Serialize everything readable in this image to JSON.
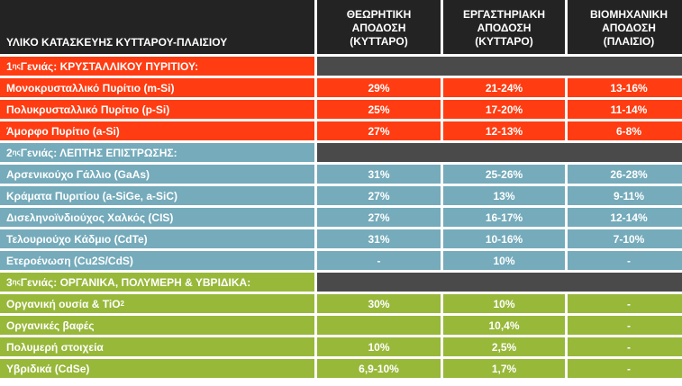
{
  "header": {
    "material": "ΥΛΙΚΟ ΚΑΤΑΣΚΕΥΗΣ ΚΥΤΤΑΡΟΥ-ΠΛΑΙΣΙΟΥ",
    "col1": [
      "ΘΕΩΡΗΤΙΚΗ",
      "ΑΠΟΔΟΣΗ",
      "(ΚΥΤΤΑΡΟ)"
    ],
    "col2": [
      "ΕΡΓΑΣΤΗΡΙΑΚΗ",
      "ΑΠΟΔΟΣΗ",
      "(ΚΥΤΤΑΡΟ)"
    ],
    "col3": [
      "ΒΙΟΜΗΧΑΝΙΚΗ",
      "ΑΠΟΔΟΣΗ",
      "(ΠΛΑΙΣΙΟ)"
    ]
  },
  "gen1": {
    "num": "1",
    "sup": "ης",
    "text": " Γενιάς: ΚΡΥΣΤΑΛΛΙΚΟΥ ΠΥΡΙΤΙΟΥ:"
  },
  "gen1_rows": [
    {
      "name": "Μονοκρυσταλλικό Πυρίτιο (m-Si)",
      "theo": "29%",
      "lab": "21-24%",
      "ind": "13-16%"
    },
    {
      "name": "Πολυκρυσταλλικό Πυρίτιο (p-Si)",
      "theo": "25%",
      "lab": "17-20%",
      "ind": "11-14%"
    },
    {
      "name": "Άμορφο Πυρίτιο (a-Si)",
      "theo": "27%",
      "lab": "12-13%",
      "ind": "6-8%"
    }
  ],
  "gen2": {
    "num": "2",
    "sup": "ης",
    "text": " Γενιάς: ΛΕΠΤΗΣ ΕΠΙΣΤΡΩΣΗΣ:"
  },
  "gen2_rows": [
    {
      "name": "Αρσενικούχο Γάλλιο (GaAs)",
      "theo": "31%",
      "lab": "25-26%",
      "ind": "26-28%"
    },
    {
      "name": "Κράματα Πυριτίου (a-SiGe, a-SiC)",
      "theo": "27%",
      "lab": "13%",
      "ind": "9-11%"
    },
    {
      "name": "Δισεληνοϊνδιούχος Χαλκός (CIS)",
      "theo": "27%",
      "lab": "16-17%",
      "ind": "12-14%"
    },
    {
      "name": "Τελουριούχο Κάδμιο (CdTe)",
      "theo": "31%",
      "lab": "10-16%",
      "ind": "7-10%"
    },
    {
      "name": "Ετεροένωση (Cu2S/CdS)",
      "theo": "-",
      "lab": "10%",
      "ind": "-"
    }
  ],
  "gen3": {
    "num": "3",
    "sup": "ης",
    "text": " Γενιάς: ΟΡΓΑΝΙΚΑ, ΠΟΛΥΜΕΡΗ & ΥΒΡΙΔΙΚΑ:"
  },
  "gen3_rows": [
    {
      "name": "Οργανική ουσία & TiO",
      "sub": "2",
      "theo": "30%",
      "lab": "10%",
      "ind": "-"
    },
    {
      "name": "Οργανικές βαφές",
      "theo": "",
      "lab": "10,4%",
      "ind": "-"
    },
    {
      "name": "Πολυμερή στοιχεία",
      "theo": "10%",
      "lab": "2,5%",
      "ind": "-"
    },
    {
      "name": "Υβριδικά (CdSe)",
      "theo": "6,9-10%",
      "lab": "1,7%",
      "ind": "-"
    }
  ]
}
